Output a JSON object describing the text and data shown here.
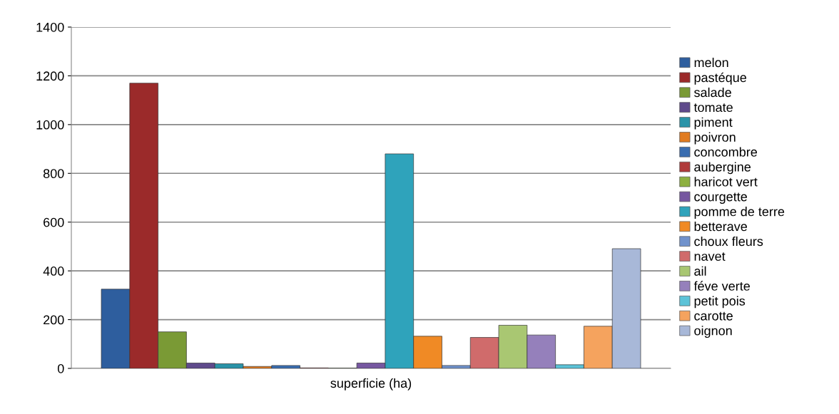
{
  "chart_data": {
    "type": "bar",
    "categories": [
      "superficie (ha)"
    ],
    "ylim": [
      0,
      1400
    ],
    "yticks": [
      0,
      200,
      400,
      600,
      800,
      1000,
      1200,
      1400
    ],
    "grid": "y",
    "legend": "right",
    "series": [
      {
        "name": "melon",
        "color": "#2e5e9e",
        "values": [
          325
        ]
      },
      {
        "name": "pastéque",
        "color": "#9b2a2a",
        "values": [
          1170
        ]
      },
      {
        "name": "salade",
        "color": "#7a9a35",
        "values": [
          150
        ]
      },
      {
        "name": "tomate",
        "color": "#5f4a8b",
        "values": [
          22
        ]
      },
      {
        "name": "piment",
        "color": "#2a93a8",
        "values": [
          19
        ]
      },
      {
        "name": "poivron",
        "color": "#e07b20",
        "values": [
          8
        ]
      },
      {
        "name": "concombre",
        "color": "#3a6db0",
        "values": [
          12
        ]
      },
      {
        "name": "aubergine",
        "color": "#b03a3a",
        "values": [
          2
        ]
      },
      {
        "name": "haricot vert",
        "color": "#8db040",
        "values": [
          1
        ]
      },
      {
        "name": "courgette",
        "color": "#7657a0",
        "values": [
          22
        ]
      },
      {
        "name": "pomme de terre",
        "color": "#2fa3bb",
        "values": [
          880
        ]
      },
      {
        "name": "betterave",
        "color": "#f08a25",
        "values": [
          132
        ]
      },
      {
        "name": "choux fleurs",
        "color": "#7092cc",
        "values": [
          12
        ]
      },
      {
        "name": "navet",
        "color": "#d06b6b",
        "values": [
          127
        ]
      },
      {
        "name": "ail",
        "color": "#a9c772",
        "values": [
          177
        ]
      },
      {
        "name": "féve verte",
        "color": "#9580bb",
        "values": [
          137
        ]
      },
      {
        "name": "petit pois",
        "color": "#5cc3d8",
        "values": [
          15
        ]
      },
      {
        "name": "carotte",
        "color": "#f5a35e",
        "values": [
          173
        ]
      },
      {
        "name": "oignon",
        "color": "#a8b8d8",
        "values": [
          491
        ]
      }
    ]
  }
}
